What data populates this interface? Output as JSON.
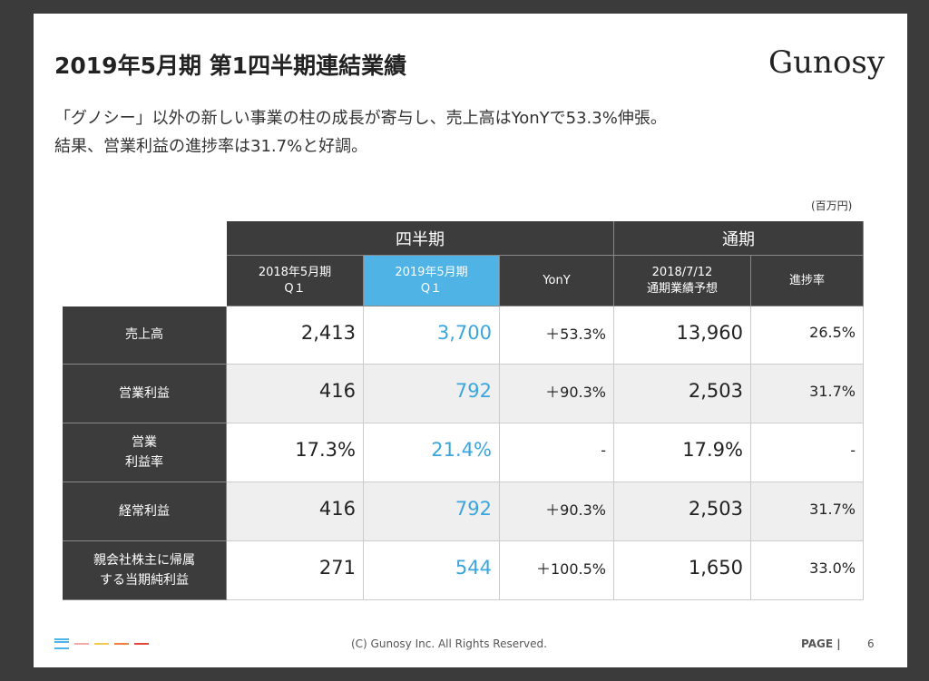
{
  "header": {
    "title": "2019年5月期 第1四半期連結業績",
    "logo": "Gunosy"
  },
  "subtitle": [
    "「グノシー」以外の新しい事業の柱の成長が寄与し、売上高はYonYで53.3%伸張。",
    "結果、営業利益の進捗率は31.7%と好調。"
  ],
  "unit": "(百万円)",
  "table": {
    "group_headers": [
      "四半期",
      "通期"
    ],
    "column_headers": [
      "2018年5月期\nQ１",
      "2019年5月期\nQ１",
      "YonY",
      "2018/7/12\n通期業績予想",
      "進捗率"
    ],
    "rows": [
      {
        "label": "売上高",
        "cells": [
          "2,413",
          "3,700",
          "＋53.3%",
          "13,960",
          "26.5%"
        ]
      },
      {
        "label": "営業利益",
        "cells": [
          "416",
          "792",
          "＋90.3%",
          "2,503",
          "31.7%"
        ]
      },
      {
        "label": "営業\n利益率",
        "cells": [
          "17.3%",
          "21.4%",
          "-",
          "17.9%",
          "-"
        ]
      },
      {
        "label": "経常利益",
        "cells": [
          "416",
          "792",
          "＋90.3%",
          "2,503",
          "31.7%"
        ]
      },
      {
        "label": "親会社株主に帰属\nする当期純利益",
        "cells": [
          "271",
          "544",
          "＋100.5%",
          "1,650",
          "33.0%"
        ]
      }
    ]
  },
  "footer": {
    "copyright": "(C)  Gunosy Inc. All Rights Reserved.",
    "page_label": "PAGE |",
    "page_number": "6"
  }
}
